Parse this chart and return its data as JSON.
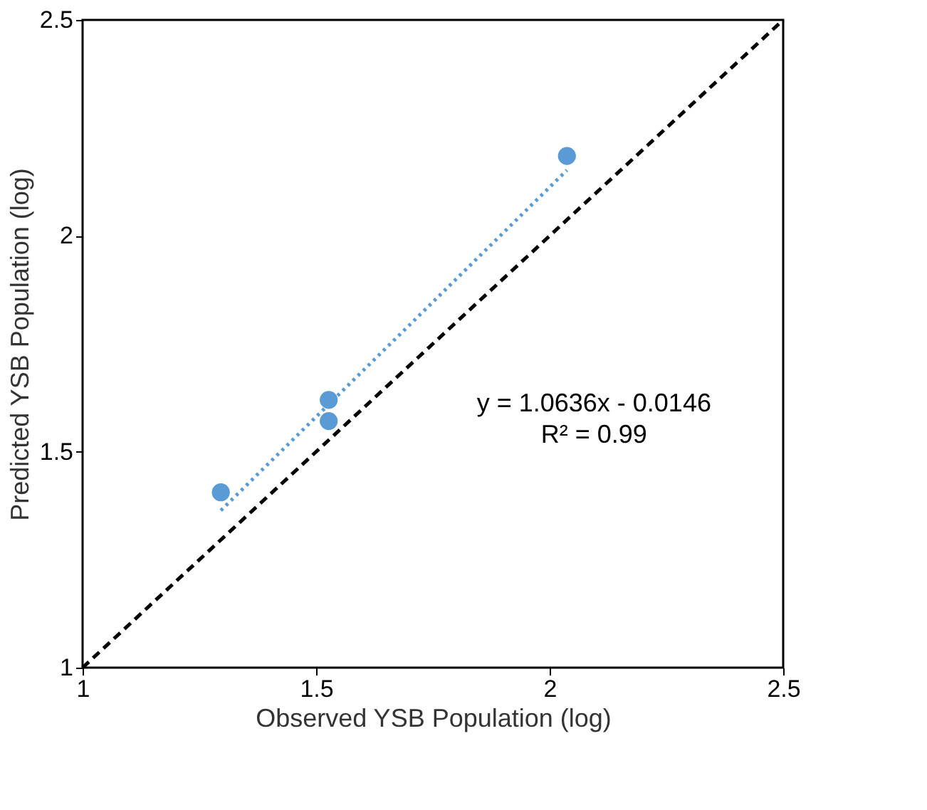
{
  "chart_data": {
    "type": "scatter",
    "xlabel": "Observed YSB Population (log)",
    "ylabel": "Predicted YSB Population (log)",
    "xlim": [
      1,
      2.5
    ],
    "ylim": [
      1,
      2.5
    ],
    "xticks": [
      1,
      1.5,
      2,
      2.5
    ],
    "yticks": [
      1,
      1.5,
      2,
      2.5
    ],
    "grid": false,
    "series": [
      {
        "color": "#5b9bd5",
        "marker": "circle",
        "x": [
          1.296,
          1.527,
          1.527,
          2.037
        ],
        "values": [
          1.406,
          1.571,
          1.62,
          2.185
        ]
      },
      {
        "type": "line",
        "color": "#5b9bd5",
        "line_style": "dotted",
        "marker": "none",
        "x": [
          1.296,
          2.037
        ],
        "values": [
          1.364,
          2.152
        ]
      },
      {
        "type": "line",
        "color": "#000000",
        "line_style": "dashed",
        "marker": "none",
        "x": [
          1,
          2.5
        ],
        "values": [
          1,
          2.5
        ]
      }
    ],
    "annotations": [
      "y = 1.0636x - 0.0146",
      "R² = 0.99"
    ]
  }
}
